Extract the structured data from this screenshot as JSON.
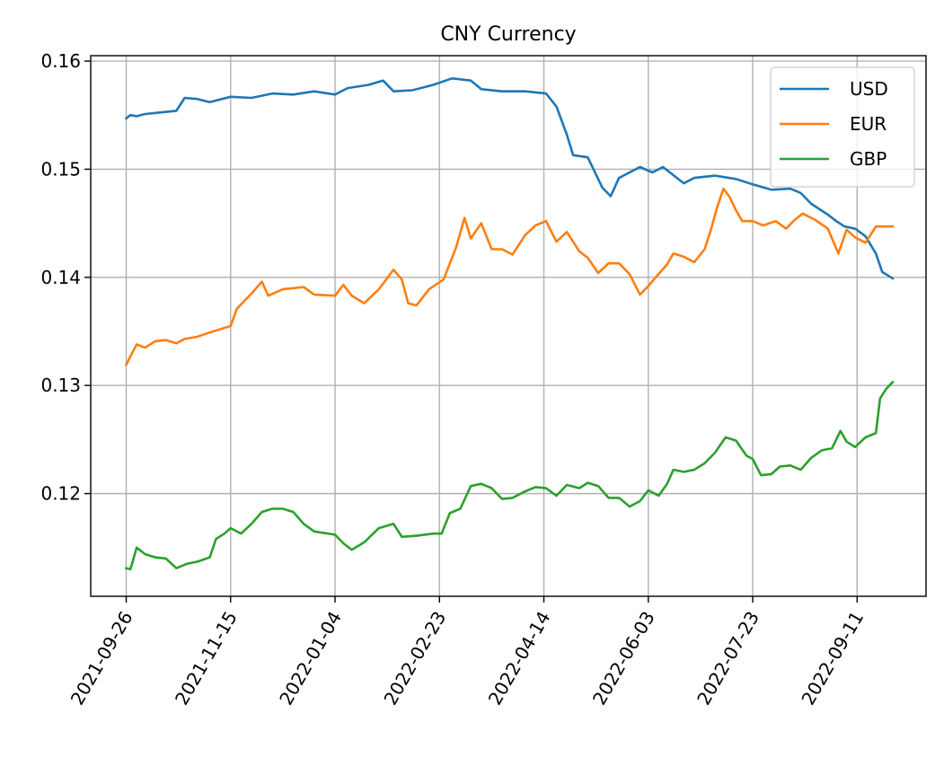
{
  "chart_data": {
    "type": "line",
    "title": "CNY Currency",
    "xlabel": "",
    "ylabel": "",
    "x_ticks": [
      "2021-09-26",
      "2021-11-15",
      "2022-01-04",
      "2022-02-23",
      "2022-04-14",
      "2022-06-03",
      "2022-07-23",
      "2022-09-11"
    ],
    "y_ticks": [
      "0.12",
      "0.13",
      "0.14",
      "0.15",
      "0.16"
    ],
    "xlim": [
      "2021-09-09",
      "2022-10-14"
    ],
    "ylim": [
      0.1105,
      0.1605
    ],
    "grid": true,
    "legend_position": "top-right",
    "series": [
      {
        "name": "USD",
        "color": "#1f77b4",
        "points": [
          [
            "2021-09-26",
            0.1547
          ],
          [
            "2021-09-28",
            0.155
          ],
          [
            "2021-10-01",
            0.1549
          ],
          [
            "2021-10-05",
            0.1551
          ],
          [
            "2021-10-10",
            0.1552
          ],
          [
            "2021-10-15",
            0.1553
          ],
          [
            "2021-10-20",
            0.1554
          ],
          [
            "2021-10-24",
            0.1566
          ],
          [
            "2021-10-30",
            0.1565
          ],
          [
            "2021-11-05",
            0.1562
          ],
          [
            "2021-11-15",
            0.1567
          ],
          [
            "2021-11-25",
            0.1566
          ],
          [
            "2021-12-05",
            0.157
          ],
          [
            "2021-12-15",
            0.1569
          ],
          [
            "2021-12-25",
            0.1572
          ],
          [
            "2022-01-04",
            0.1569
          ],
          [
            "2022-01-10",
            0.1575
          ],
          [
            "2022-01-20",
            0.1578
          ],
          [
            "2022-01-27",
            0.1582
          ],
          [
            "2022-02-01",
            0.1572
          ],
          [
            "2022-02-10",
            0.1573
          ],
          [
            "2022-02-20",
            0.1578
          ],
          [
            "2022-03-01",
            0.1584
          ],
          [
            "2022-03-10",
            0.1582
          ],
          [
            "2022-03-15",
            0.1574
          ],
          [
            "2022-03-25",
            0.1572
          ],
          [
            "2022-04-05",
            0.1572
          ],
          [
            "2022-04-15",
            0.157
          ],
          [
            "2022-04-20",
            0.1558
          ],
          [
            "2022-04-25",
            0.1532
          ],
          [
            "2022-04-28",
            0.1513
          ],
          [
            "2022-05-05",
            0.1511
          ],
          [
            "2022-05-12",
            0.1483
          ],
          [
            "2022-05-16",
            0.1475
          ],
          [
            "2022-05-20",
            0.1492
          ],
          [
            "2022-05-25",
            0.1497
          ],
          [
            "2022-05-30",
            0.1502
          ],
          [
            "2022-06-05",
            0.1497
          ],
          [
            "2022-06-10",
            0.1502
          ],
          [
            "2022-06-20",
            0.1487
          ],
          [
            "2022-06-25",
            0.1492
          ],
          [
            "2022-07-05",
            0.1494
          ],
          [
            "2022-07-15",
            0.1491
          ],
          [
            "2022-07-23",
            0.1486
          ],
          [
            "2022-08-01",
            0.1481
          ],
          [
            "2022-08-10",
            0.1482
          ],
          [
            "2022-08-15",
            0.1478
          ],
          [
            "2022-08-20",
            0.1468
          ],
          [
            "2022-08-28",
            0.1458
          ],
          [
            "2022-09-01",
            0.1452
          ],
          [
            "2022-09-05",
            0.1447
          ],
          [
            "2022-09-10",
            0.1445
          ],
          [
            "2022-09-15",
            0.1438
          ],
          [
            "2022-09-20",
            0.1422
          ],
          [
            "2022-09-23",
            0.1405
          ],
          [
            "2022-09-28",
            0.1399
          ]
        ]
      },
      {
        "name": "EUR",
        "color": "#ff7f0e",
        "points": [
          [
            "2021-09-26",
            0.1319
          ],
          [
            "2021-09-28",
            0.1327
          ],
          [
            "2021-10-01",
            0.1338
          ],
          [
            "2021-10-05",
            0.1335
          ],
          [
            "2021-10-10",
            0.1341
          ],
          [
            "2021-10-15",
            0.1342
          ],
          [
            "2021-10-20",
            0.1339
          ],
          [
            "2021-10-24",
            0.1343
          ],
          [
            "2021-10-30",
            0.1345
          ],
          [
            "2021-11-05",
            0.1349
          ],
          [
            "2021-11-10",
            0.1352
          ],
          [
            "2021-11-15",
            0.1355
          ],
          [
            "2021-11-18",
            0.1371
          ],
          [
            "2021-11-25",
            0.1385
          ],
          [
            "2021-11-30",
            0.1396
          ],
          [
            "2021-12-03",
            0.1383
          ],
          [
            "2021-12-10",
            0.1389
          ],
          [
            "2021-12-20",
            0.1391
          ],
          [
            "2021-12-25",
            0.1384
          ],
          [
            "2022-01-04",
            0.1383
          ],
          [
            "2022-01-08",
            0.1393
          ],
          [
            "2022-01-12",
            0.1383
          ],
          [
            "2022-01-18",
            0.1376
          ],
          [
            "2022-01-25",
            0.1389
          ],
          [
            "2022-02-01",
            0.1407
          ],
          [
            "2022-02-05",
            0.1398
          ],
          [
            "2022-02-08",
            0.1376
          ],
          [
            "2022-02-12",
            0.1374
          ],
          [
            "2022-02-18",
            0.1389
          ],
          [
            "2022-02-25",
            0.1398
          ],
          [
            "2022-02-28",
            0.1413
          ],
          [
            "2022-03-03",
            0.1428
          ],
          [
            "2022-03-07",
            0.1455
          ],
          [
            "2022-03-10",
            0.1436
          ],
          [
            "2022-03-15",
            0.145
          ],
          [
            "2022-03-20",
            0.1426
          ],
          [
            "2022-03-25",
            0.1426
          ],
          [
            "2022-03-30",
            0.1421
          ],
          [
            "2022-04-05",
            0.1439
          ],
          [
            "2022-04-10",
            0.1448
          ],
          [
            "2022-04-15",
            0.1452
          ],
          [
            "2022-04-20",
            0.1433
          ],
          [
            "2022-04-25",
            0.1442
          ],
          [
            "2022-05-01",
            0.1424
          ],
          [
            "2022-05-05",
            0.1418
          ],
          [
            "2022-05-10",
            0.1404
          ],
          [
            "2022-05-15",
            0.1413
          ],
          [
            "2022-05-20",
            0.1413
          ],
          [
            "2022-05-25",
            0.1403
          ],
          [
            "2022-05-30",
            0.1384
          ],
          [
            "2022-06-03",
            0.1392
          ],
          [
            "2022-06-07",
            0.1401
          ],
          [
            "2022-06-12",
            0.1412
          ],
          [
            "2022-06-15",
            0.1422
          ],
          [
            "2022-06-20",
            0.1419
          ],
          [
            "2022-06-25",
            0.1414
          ],
          [
            "2022-06-30",
            0.1426
          ],
          [
            "2022-07-03",
            0.1444
          ],
          [
            "2022-07-06",
            0.1465
          ],
          [
            "2022-07-09",
            0.1482
          ],
          [
            "2022-07-12",
            0.1474
          ],
          [
            "2022-07-15",
            0.1462
          ],
          [
            "2022-07-18",
            0.1452
          ],
          [
            "2022-07-23",
            0.1452
          ],
          [
            "2022-07-28",
            0.1448
          ],
          [
            "2022-08-03",
            0.1452
          ],
          [
            "2022-08-08",
            0.1445
          ],
          [
            "2022-08-12",
            0.1453
          ],
          [
            "2022-08-16",
            0.1459
          ],
          [
            "2022-08-22",
            0.1453
          ],
          [
            "2022-08-28",
            0.1445
          ],
          [
            "2022-09-02",
            0.1422
          ],
          [
            "2022-09-06",
            0.1444
          ],
          [
            "2022-09-10",
            0.1437
          ],
          [
            "2022-09-15",
            0.1432
          ],
          [
            "2022-09-20",
            0.1447
          ],
          [
            "2022-09-25",
            0.1447
          ],
          [
            "2022-09-28",
            0.1447
          ]
        ]
      },
      {
        "name": "GBP",
        "color": "#2ca02c",
        "points": [
          [
            "2021-09-26",
            0.1131
          ],
          [
            "2021-09-28",
            0.113
          ],
          [
            "2021-10-01",
            0.115
          ],
          [
            "2021-10-05",
            0.1144
          ],
          [
            "2021-10-10",
            0.1141
          ],
          [
            "2021-10-15",
            0.114
          ],
          [
            "2021-10-20",
            0.1131
          ],
          [
            "2021-10-25",
            0.1135
          ],
          [
            "2021-10-30",
            0.1137
          ],
          [
            "2021-11-05",
            0.1141
          ],
          [
            "2021-11-08",
            0.1158
          ],
          [
            "2021-11-12",
            0.1163
          ],
          [
            "2021-11-15",
            0.1168
          ],
          [
            "2021-11-20",
            0.1163
          ],
          [
            "2021-11-25",
            0.1172
          ],
          [
            "2021-11-30",
            0.1183
          ],
          [
            "2021-12-05",
            0.1186
          ],
          [
            "2021-12-10",
            0.1186
          ],
          [
            "2021-12-15",
            0.1183
          ],
          [
            "2021-12-20",
            0.1172
          ],
          [
            "2021-12-25",
            0.1165
          ],
          [
            "2022-01-04",
            0.1162
          ],
          [
            "2022-01-08",
            0.1154
          ],
          [
            "2022-01-12",
            0.1148
          ],
          [
            "2022-01-18",
            0.1155
          ],
          [
            "2022-01-25",
            0.1168
          ],
          [
            "2022-02-01",
            0.1172
          ],
          [
            "2022-02-05",
            0.116
          ],
          [
            "2022-02-12",
            0.1161
          ],
          [
            "2022-02-20",
            0.1163
          ],
          [
            "2022-02-24",
            0.1163
          ],
          [
            "2022-02-28",
            0.1182
          ],
          [
            "2022-03-05",
            0.1186
          ],
          [
            "2022-03-10",
            0.1207
          ],
          [
            "2022-03-15",
            0.1209
          ],
          [
            "2022-03-20",
            0.1205
          ],
          [
            "2022-03-25",
            0.1195
          ],
          [
            "2022-03-30",
            0.1196
          ],
          [
            "2022-04-05",
            0.1202
          ],
          [
            "2022-04-10",
            0.1206
          ],
          [
            "2022-04-15",
            0.1205
          ],
          [
            "2022-04-20",
            0.1198
          ],
          [
            "2022-04-25",
            0.1208
          ],
          [
            "2022-05-01",
            0.1205
          ],
          [
            "2022-05-05",
            0.121
          ],
          [
            "2022-05-10",
            0.1207
          ],
          [
            "2022-05-15",
            0.1196
          ],
          [
            "2022-05-20",
            0.1196
          ],
          [
            "2022-05-25",
            0.1188
          ],
          [
            "2022-05-30",
            0.1193
          ],
          [
            "2022-06-03",
            0.1203
          ],
          [
            "2022-06-08",
            0.1198
          ],
          [
            "2022-06-12",
            0.1209
          ],
          [
            "2022-06-15",
            0.1222
          ],
          [
            "2022-06-20",
            0.122
          ],
          [
            "2022-06-25",
            0.1222
          ],
          [
            "2022-06-30",
            0.1228
          ],
          [
            "2022-07-05",
            0.1238
          ],
          [
            "2022-07-10",
            0.1252
          ],
          [
            "2022-07-15",
            0.1249
          ],
          [
            "2022-07-20",
            0.1235
          ],
          [
            "2022-07-23",
            0.1232
          ],
          [
            "2022-07-27",
            0.1217
          ],
          [
            "2022-08-01",
            0.1218
          ],
          [
            "2022-08-05",
            0.1225
          ],
          [
            "2022-08-10",
            0.1226
          ],
          [
            "2022-08-15",
            0.1222
          ],
          [
            "2022-08-20",
            0.1233
          ],
          [
            "2022-08-25",
            0.124
          ],
          [
            "2022-08-30",
            0.1242
          ],
          [
            "2022-09-03",
            0.1258
          ],
          [
            "2022-09-06",
            0.1248
          ],
          [
            "2022-09-10",
            0.1243
          ],
          [
            "2022-09-15",
            0.1252
          ],
          [
            "2022-09-20",
            0.1256
          ],
          [
            "2022-09-22",
            0.1288
          ],
          [
            "2022-09-25",
            0.1297
          ],
          [
            "2022-09-28",
            0.1303
          ]
        ]
      }
    ]
  }
}
